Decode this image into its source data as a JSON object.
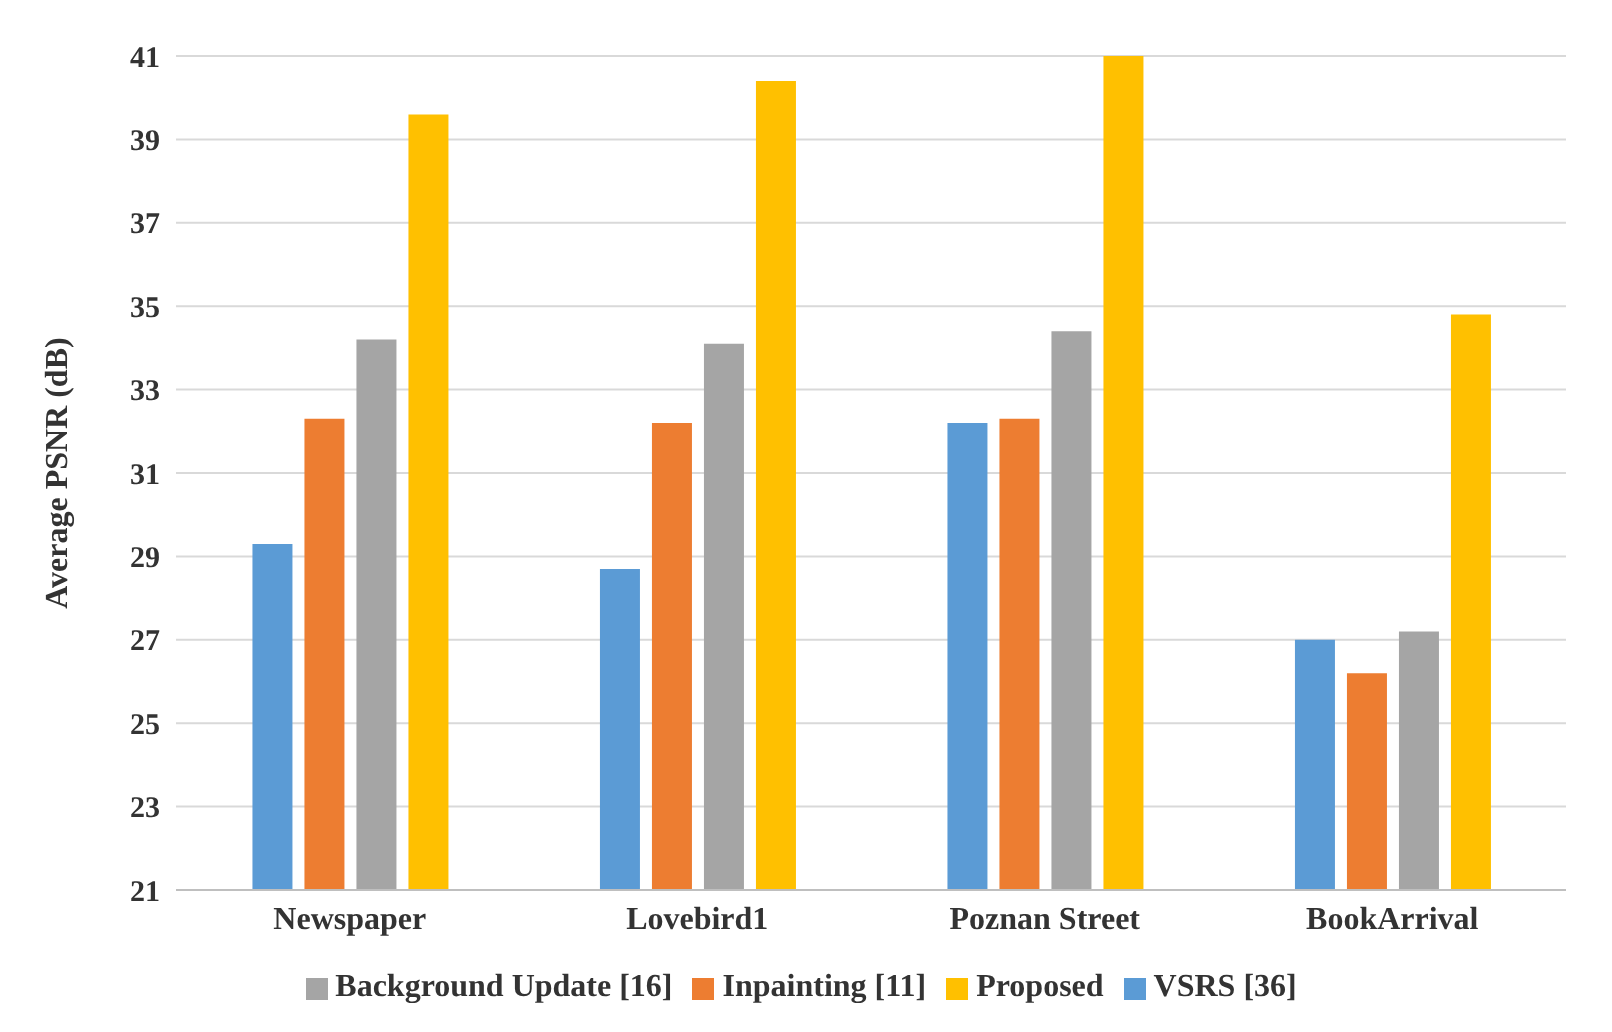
{
  "chart_data": {
    "type": "bar",
    "ylabel": "Average PSNR (dB)",
    "categories": [
      "Newspaper",
      "Lovebird1",
      "Poznan Street",
      "BookArrival"
    ],
    "series": [
      {
        "name": "VSRS [36]",
        "color": "#5b9bd5",
        "values": [
          29.3,
          28.7,
          32.2,
          27.0
        ]
      },
      {
        "name": "Inpainting [11]",
        "color": "#ed7d31",
        "values": [
          32.3,
          32.2,
          32.3,
          26.2
        ]
      },
      {
        "name": "Background Update [16]",
        "color": "#a5a5a5",
        "values": [
          34.2,
          34.1,
          34.4,
          27.2
        ]
      },
      {
        "name": "Proposed",
        "color": "#ffc000",
        "values": [
          39.6,
          40.4,
          41.0,
          34.8
        ]
      }
    ],
    "ylim": [
      21,
      41
    ],
    "yticks": [
      21,
      23,
      25,
      27,
      29,
      31,
      33,
      35,
      37,
      39,
      41
    ],
    "grid": "y",
    "legend": "bottom"
  }
}
